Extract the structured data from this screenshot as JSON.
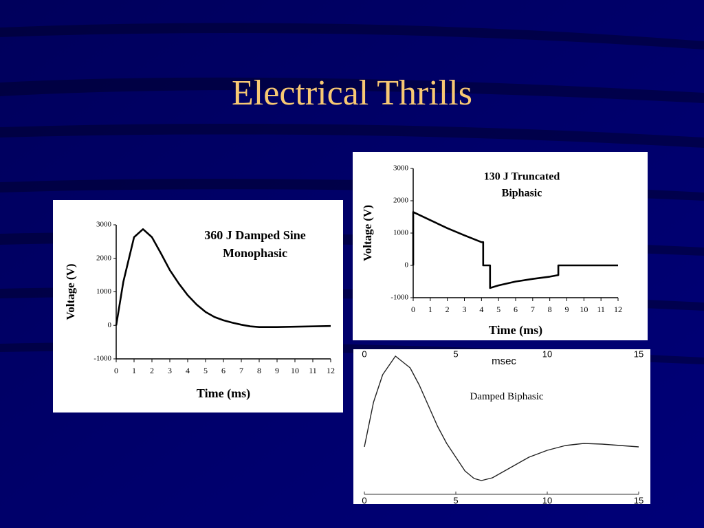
{
  "title": "Electrical Thrills",
  "chart_data": [
    {
      "type": "line",
      "title": [
        "360 J Damped Sine",
        "Monophasic"
      ],
      "x_label": "Time (ms)",
      "y_label": "Voltage (V)",
      "x": [
        0,
        0.4,
        1,
        1.5,
        2,
        2.5,
        3,
        3.5,
        4,
        4.5,
        5,
        5.5,
        6,
        6.5,
        7,
        7.5,
        8,
        9,
        10,
        11,
        12
      ],
      "values": [
        0,
        1300,
        2630,
        2870,
        2630,
        2150,
        1650,
        1250,
        900,
        620,
        400,
        250,
        150,
        80,
        20,
        -30,
        -50,
        -50,
        -40,
        -30,
        -20
      ],
      "color": "#000000",
      "xlim": [
        0,
        12
      ],
      "xticks": [
        0,
        1,
        2,
        3,
        4,
        5,
        6,
        7,
        8,
        9,
        10,
        11,
        12
      ],
      "ylim": [
        -1000,
        3000
      ],
      "yticks": [
        -1000,
        0,
        1000,
        2000,
        3000
      ]
    },
    {
      "type": "line",
      "title": [
        "130 J Truncated",
        "Biphasic"
      ],
      "x_label": "Time (ms)",
      "y_label": "Voltage (V)",
      "x": [
        0,
        0,
        1,
        2,
        3,
        4,
        4.1,
        4.1,
        4.5,
        4.5,
        5,
        6,
        7,
        8,
        8.5,
        8.5,
        12
      ],
      "values": [
        0,
        1650,
        1400,
        1150,
        930,
        720,
        720,
        0,
        0,
        -700,
        -620,
        -500,
        -420,
        -350,
        -300,
        0,
        0
      ],
      "color": "#000000",
      "xlim": [
        0,
        12
      ],
      "xticks": [
        0,
        1,
        2,
        3,
        4,
        5,
        6,
        7,
        8,
        9,
        10,
        11,
        12
      ],
      "ylim": [
        -1000,
        3000
      ],
      "yticks": [
        -1000,
        0,
        1000,
        2000,
        3000
      ]
    },
    {
      "type": "line",
      "x_label": "msec",
      "annotation": "Damped Biphasic",
      "x": [
        0,
        0.5,
        1,
        1.7,
        2.5,
        3,
        3.5,
        4,
        4.5,
        5,
        5.5,
        6,
        6.4,
        7,
        8,
        9,
        10,
        11,
        12,
        13,
        14,
        15
      ],
      "values": [
        0,
        0.65,
        1.05,
        1.32,
        1.15,
        0.9,
        0.6,
        0.3,
        0.05,
        -0.15,
        -0.35,
        -0.46,
        -0.49,
        -0.45,
        -0.3,
        -0.15,
        -0.05,
        0.02,
        0.05,
        0.04,
        0.02,
        0
      ],
      "color": "#222222",
      "xlim": [
        0,
        15
      ],
      "xticks": [
        0,
        5,
        10,
        15
      ],
      "ylim": [
        -0.7,
        1.45
      ]
    }
  ]
}
